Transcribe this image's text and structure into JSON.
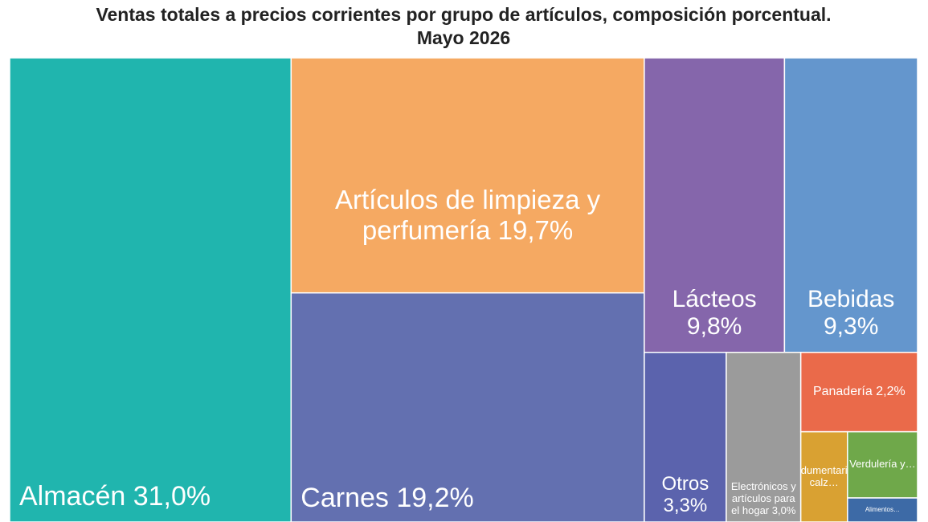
{
  "chart_data": {
    "type": "treemap",
    "title": "Ventas totales a precios corrientes por grupo de artículos, composición porcentual.",
    "subtitle": "Mayo 2026",
    "categories": [
      "Almacén",
      "Artículos de limpieza y perfumería",
      "Carnes",
      "Lácteos",
      "Bebidas",
      "Otros",
      "Electrónicos y artículos para el hogar",
      "Panadería",
      "Indumentaria, calz…",
      "Verdulería y…",
      "Alimentos…"
    ],
    "values": [
      31.0,
      19.7,
      19.2,
      9.8,
      9.3,
      3.3,
      3.0,
      2.2,
      1.0,
      1.1,
      0.4
    ],
    "value_labels": [
      "31,0%",
      "19,7%",
      "19,2%",
      "9,8%",
      "9,3%",
      "3,3%",
      "3,0%",
      "2,2%",
      null,
      null,
      null
    ],
    "colors": [
      "#20b5ae",
      "#f5a962",
      "#6370b0",
      "#8566ab",
      "#6496cd",
      "#5b63ad",
      "#9b9b9b",
      "#ea6a4a",
      "#d9a132",
      "#6fa84a",
      "#3d6aa6"
    ]
  }
}
